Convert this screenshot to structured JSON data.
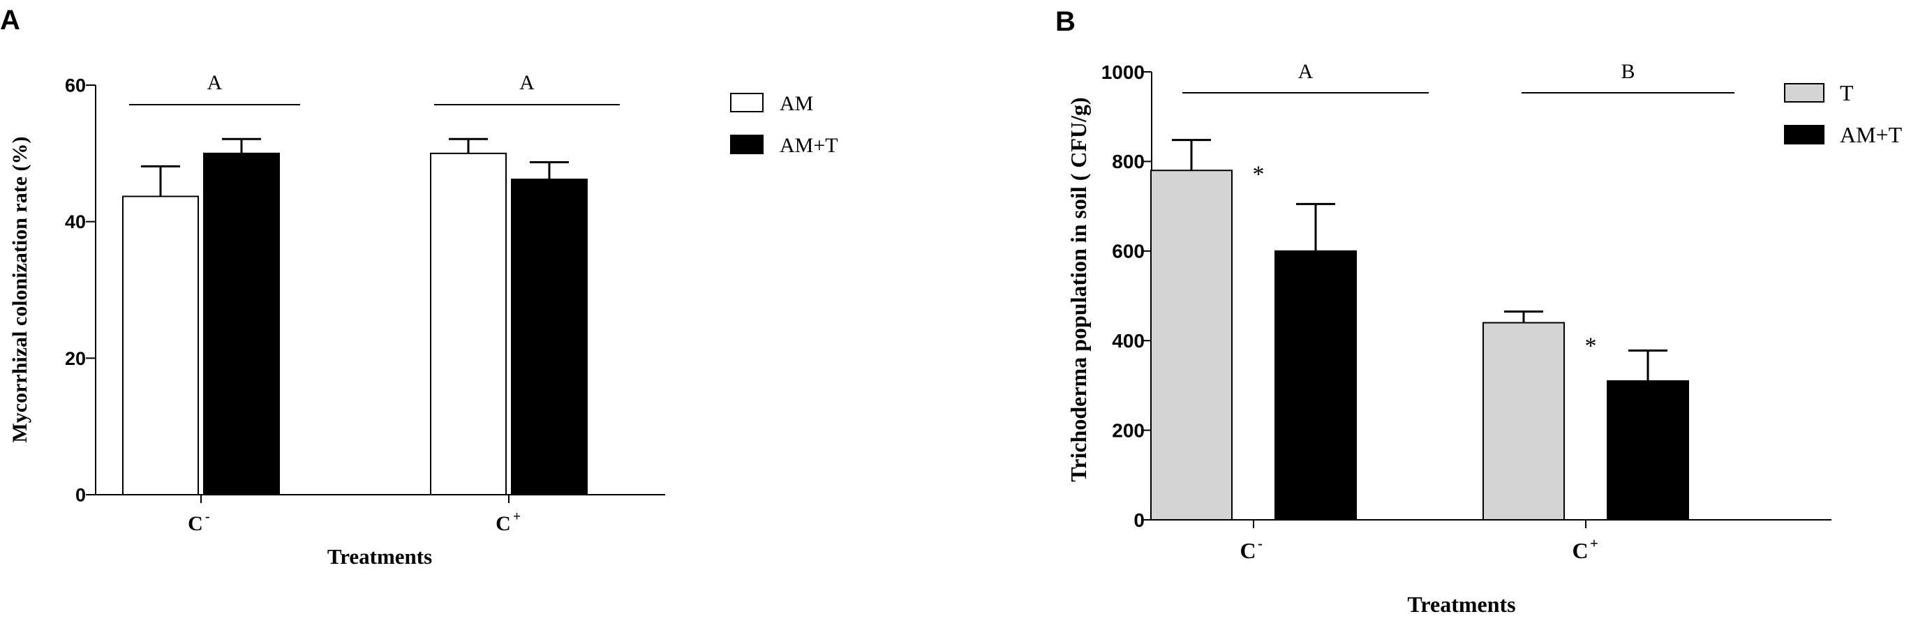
{
  "chart_data": [
    {
      "panel_label": "A",
      "type": "bar",
      "categories": [
        "C",
        "C"
      ],
      "category_superscripts": [
        "-",
        "+"
      ],
      "series": [
        {
          "name": "AM",
          "color": "#ffffff",
          "values": [
            43.7,
            50.0
          ],
          "errors": [
            4.4,
            2.1
          ]
        },
        {
          "name": "AM+T",
          "color": "#000000",
          "values": [
            50.0,
            46.2
          ],
          "errors": [
            2.1,
            2.5
          ]
        }
      ],
      "ylabel": "Mycorrhizal colonization rate (%)",
      "xlabel": "Treatments",
      "ylim": [
        0,
        60
      ],
      "yticks": [
        "0",
        "20",
        "40",
        "60"
      ],
      "group_labels": [
        "A",
        "A"
      ],
      "significance_marks": [
        "",
        ""
      ],
      "grid": false,
      "legend_position": "top-right"
    },
    {
      "panel_label": "B",
      "type": "bar",
      "categories": [
        "C",
        "C"
      ],
      "category_superscripts": [
        "-",
        "+"
      ],
      "series": [
        {
          "name": "T",
          "color": "#d4d4d4",
          "values": [
            780,
            440
          ],
          "errors": [
            68,
            25
          ]
        },
        {
          "name": "AM+T",
          "color": "#000000",
          "values": [
            600,
            310
          ],
          "errors": [
            105,
            68
          ]
        }
      ],
      "ylabel": "Trichoderma population in soil ( CFU/g)",
      "xlabel": "Treatments",
      "ylim": [
        0,
        1000
      ],
      "yticks": [
        "0",
        "200",
        "400",
        "600",
        "800",
        "1000"
      ],
      "group_labels": [
        "A",
        "B"
      ],
      "significance_marks": [
        "*",
        "*"
      ],
      "grid": false,
      "legend_position": "top-right"
    }
  ]
}
